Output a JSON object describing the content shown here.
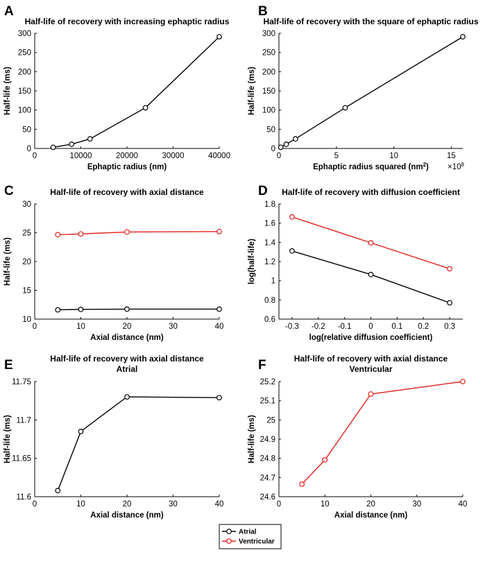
{
  "colors": {
    "atrial": "#000000",
    "ventricular": "#e0201b"
  },
  "legend": {
    "items": [
      {
        "label": "Atrial",
        "key": "atrial"
      },
      {
        "label": "Ventricular",
        "key": "ventricular"
      }
    ]
  },
  "chart_data": [
    {
      "id": "A",
      "type": "line",
      "title": "Half-life of recovery with increasing ephaptic radius",
      "xlabel": "Ephaptic radius (nm)",
      "ylabel": "Half-life (ms)",
      "xlim": [
        0,
        40000
      ],
      "ylim": [
        0,
        300
      ],
      "xticks": [
        0,
        10000,
        20000,
        30000,
        40000
      ],
      "xticklabels": [
        "0",
        "10000",
        "20000",
        "30000",
        "40000"
      ],
      "yticks": [
        0,
        50,
        100,
        150,
        200,
        250,
        300
      ],
      "yticklabels": [
        "0",
        "50",
        "100",
        "150",
        "200",
        "250",
        "300"
      ],
      "series": [
        {
          "name": "Atrial",
          "color": "#000000",
          "x": [
            4000,
            8000,
            12000,
            24000,
            40000
          ],
          "y": [
            3,
            11,
            25,
            106,
            291
          ]
        }
      ]
    },
    {
      "id": "B",
      "type": "line",
      "title": "Half-life of recovery with the square of ephaptic radius",
      "xlabel": "Ephaptic radius squared (nm",
      "xlabel_sup": "2",
      "xlabel_tail": ")",
      "x_exponent_base": "×10",
      "x_exponent_power": "8",
      "ylabel": "Half-life (ms)",
      "xlim": [
        0,
        16
      ],
      "ylim": [
        0,
        300
      ],
      "xticks": [
        0,
        5,
        10,
        15
      ],
      "xticklabels": [
        "0",
        "5",
        "10",
        "15"
      ],
      "yticks": [
        0,
        50,
        100,
        150,
        200,
        250,
        300
      ],
      "yticklabels": [
        "0",
        "50",
        "100",
        "150",
        "200",
        "250",
        "300"
      ],
      "series": [
        {
          "name": "Atrial",
          "color": "#000000",
          "x": [
            0.16,
            0.64,
            1.44,
            5.76,
            16
          ],
          "y": [
            3,
            11,
            25,
            106,
            291
          ]
        }
      ]
    },
    {
      "id": "C",
      "type": "line",
      "title": "Half-life of recovery with axial distance",
      "xlabel": "Axial distance (nm)",
      "ylabel": "Half-life (ms)",
      "xlim": [
        0,
        40
      ],
      "ylim": [
        10,
        30
      ],
      "xticks": [
        0,
        10,
        20,
        30,
        40
      ],
      "xticklabels": [
        "0",
        "10",
        "20",
        "30",
        "40"
      ],
      "yticks": [
        10,
        15,
        20,
        25,
        30
      ],
      "yticklabels": [
        "10",
        "15",
        "20",
        "25",
        "30"
      ],
      "series": [
        {
          "name": "Atrial",
          "color": "#000000",
          "x": [
            5,
            10,
            20,
            40
          ],
          "y": [
            11.61,
            11.685,
            11.73,
            11.729
          ]
        },
        {
          "name": "Ventricular",
          "color": "#e0201b",
          "x": [
            5,
            10,
            20,
            40
          ],
          "y": [
            24.665,
            24.79,
            25.135,
            25.2
          ]
        }
      ]
    },
    {
      "id": "D",
      "type": "line",
      "title": "Half-life of recovery with diffusion coefficient",
      "xlabel": "log(relative diffusion coefficient)",
      "ylabel": "log(half-life)",
      "xlim": [
        -0.35,
        0.35
      ],
      "ylim": [
        0.6,
        1.8
      ],
      "xticks": [
        -0.3,
        -0.2,
        -0.1,
        0,
        0.1,
        0.2,
        0.3
      ],
      "xticklabels": [
        "-0.3",
        "-0.2",
        "-0.1",
        "0",
        "0.1",
        "0.2",
        "0.3"
      ],
      "yticks": [
        0.6,
        0.8,
        1.0,
        1.2,
        1.4,
        1.6,
        1.8
      ],
      "yticklabels": [
        "0.6",
        "0.8",
        "1",
        "1.2",
        "1.4",
        "1.6",
        "1.8"
      ],
      "series": [
        {
          "name": "Atrial",
          "color": "#000000",
          "x": [
            -0.3,
            0,
            0.3
          ],
          "y": [
            1.31,
            1.065,
            0.77
          ]
        },
        {
          "name": "Ventricular",
          "color": "#e0201b",
          "x": [
            -0.3,
            0,
            0.3
          ],
          "y": [
            1.665,
            1.395,
            1.125
          ]
        }
      ]
    },
    {
      "id": "E",
      "type": "line",
      "title": "Half-life of recovery with axial distance",
      "subtitle": "Atrial",
      "xlabel": "Axial distance (nm)",
      "ylabel": "Half-life (ms)",
      "xlim": [
        0,
        40
      ],
      "ylim": [
        11.6,
        11.75
      ],
      "xticks": [
        0,
        10,
        20,
        30,
        40
      ],
      "xticklabels": [
        "0",
        "10",
        "20",
        "30",
        "40"
      ],
      "yticks": [
        11.6,
        11.65,
        11.7,
        11.75
      ],
      "yticklabels": [
        "11.6",
        "11.65",
        "11.7",
        "11.75"
      ],
      "series": [
        {
          "name": "Atrial",
          "color": "#000000",
          "x": [
            5,
            10,
            20,
            40
          ],
          "y": [
            11.608,
            11.685,
            11.73,
            11.729
          ]
        }
      ]
    },
    {
      "id": "F",
      "type": "line",
      "title": "Half-life of recovery with axial distance",
      "subtitle": "Ventricular",
      "xlabel": "Axial distance (nm)",
      "ylabel": "Half-life (ms)",
      "xlim": [
        0,
        40
      ],
      "ylim": [
        24.6,
        25.2
      ],
      "xticks": [
        0,
        10,
        20,
        30,
        40
      ],
      "xticklabels": [
        "0",
        "10",
        "20",
        "30",
        "40"
      ],
      "yticks": [
        24.6,
        24.7,
        24.8,
        24.9,
        25.0,
        25.1,
        25.2
      ],
      "yticklabels": [
        "24.6",
        "24.7",
        "24.8",
        "24.9",
        "25",
        "25.1",
        "25.2"
      ],
      "series": [
        {
          "name": "Ventricular",
          "color": "#e0201b",
          "x": [
            5,
            10,
            20,
            40
          ],
          "y": [
            24.665,
            24.792,
            25.135,
            25.2
          ]
        }
      ]
    }
  ]
}
